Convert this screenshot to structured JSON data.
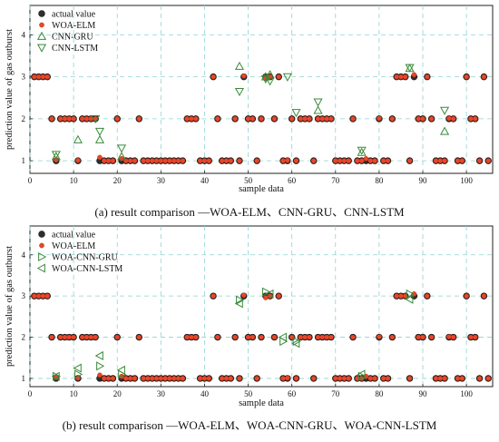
{
  "chart_data": [
    {
      "type": "scatter",
      "caption": "(a) result comparison —WOA-ELM、CNN-GRU、CNN-LSTM",
      "xlabel": "sample data",
      "ylabel": "prediction value of gas outburst",
      "xlim": [
        0,
        106
      ],
      "ylim": [
        0.7,
        4.7
      ],
      "xticks": [
        "0",
        "10",
        "20",
        "30",
        "40",
        "50",
        "60",
        "70",
        "80",
        "90",
        "100"
      ],
      "yticks": [
        "1",
        "2",
        "3",
        "4"
      ],
      "grid": true,
      "legend_position": "top-left",
      "series": [
        {
          "name": "actual value",
          "marker": "circle",
          "color": "#333333",
          "x": [
            1,
            2,
            3,
            4,
            5,
            6,
            7,
            8,
            9,
            10,
            11,
            12,
            13,
            14,
            15,
            16,
            17,
            18,
            19,
            20,
            21,
            22,
            23,
            24,
            25,
            26,
            27,
            28,
            29,
            30,
            31,
            32,
            33,
            34,
            35,
            36,
            37,
            38,
            39,
            40,
            41,
            42,
            43,
            44,
            45,
            46,
            47,
            48,
            49,
            50,
            51,
            52,
            53,
            54,
            55,
            56,
            57,
            58,
            59,
            60,
            61,
            62,
            63,
            64,
            65,
            66,
            67,
            68,
            69,
            70,
            71,
            72,
            73,
            74,
            75,
            76,
            77,
            78,
            79,
            80,
            81,
            82,
            83,
            84,
            85,
            86,
            87,
            88,
            89,
            90,
            91,
            92,
            93,
            94,
            95,
            96,
            97,
            98,
            99,
            100,
            101,
            102,
            103,
            104,
            105
          ],
          "y": [
            3,
            3,
            3,
            3,
            2,
            1,
            2,
            2,
            2,
            2,
            1,
            2,
            2,
            2,
            2,
            1,
            1,
            1,
            1,
            2,
            1,
            1,
            1,
            1,
            2,
            1,
            1,
            1,
            1,
            1,
            1,
            1,
            1,
            1,
            1,
            2,
            2,
            2,
            1,
            1,
            1,
            3,
            2,
            1,
            1,
            1,
            2,
            1,
            3,
            2,
            2,
            1,
            2,
            3,
            3,
            2,
            3,
            1,
            1,
            2,
            1,
            2,
            2,
            2,
            1,
            2,
            2,
            2,
            2,
            1,
            1,
            1,
            1,
            2,
            1,
            1,
            1,
            1,
            1,
            2,
            1,
            1,
            2,
            3,
            3,
            3,
            1,
            3,
            2,
            2,
            3,
            2,
            1,
            1,
            1,
            2,
            2,
            1,
            1,
            3,
            2,
            2,
            1,
            3,
            1
          ]
        },
        {
          "name": "WOA-ELM",
          "marker": "circle-red",
          "color": "#e8462a",
          "x": [
            1,
            2,
            3,
            4,
            5,
            6,
            7,
            8,
            9,
            10,
            11,
            12,
            13,
            14,
            15,
            16,
            17,
            18,
            19,
            20,
            21,
            22,
            23,
            24,
            25,
            26,
            27,
            28,
            29,
            30,
            31,
            32,
            33,
            34,
            35,
            36,
            37,
            38,
            39,
            40,
            41,
            42,
            43,
            44,
            45,
            46,
            47,
            48,
            49,
            50,
            51,
            52,
            53,
            54,
            55,
            56,
            57,
            58,
            59,
            60,
            61,
            62,
            63,
            64,
            65,
            66,
            67,
            68,
            69,
            70,
            71,
            72,
            73,
            74,
            75,
            76,
            77,
            78,
            79,
            80,
            81,
            82,
            83,
            84,
            85,
            86,
            87,
            88,
            89,
            90,
            91,
            92,
            93,
            94,
            95,
            96,
            97,
            98,
            99,
            100,
            101,
            102,
            103,
            104,
            105
          ],
          "y": [
            3,
            3,
            3,
            3,
            2,
            1.02,
            2,
            2,
            2,
            2,
            1.01,
            2,
            2,
            2,
            2,
            1.08,
            1,
            1,
            1,
            2,
            1.05,
            1,
            1,
            1,
            2,
            1,
            1,
            1,
            1,
            1,
            1,
            1,
            1,
            1,
            1,
            2,
            2,
            2,
            1,
            1,
            1,
            3,
            2,
            1,
            1,
            1,
            2,
            1,
            3.02,
            2,
            2,
            1,
            2,
            2.96,
            3,
            2,
            3,
            1,
            1.01,
            2,
            1,
            2,
            2,
            2,
            1,
            2,
            2,
            2,
            2,
            1,
            1,
            1,
            1,
            2,
            1,
            1,
            1.05,
            1,
            1,
            2.01,
            1,
            1,
            2,
            3,
            3,
            3,
            1,
            3.05,
            2,
            2,
            3,
            2,
            1,
            1,
            1,
            2.01,
            2,
            1,
            1,
            3,
            2,
            2,
            1,
            3,
            1
          ]
        },
        {
          "name": "CNN-GRU",
          "marker": "triangle-up",
          "color": "#3a8a3a",
          "x": [
            6,
            11,
            16,
            21,
            48,
            54,
            55,
            66,
            76,
            87,
            95
          ],
          "y": [
            1.1,
            1.5,
            1.5,
            1.1,
            3.25,
            3.0,
            3.05,
            2.2,
            1.2,
            3.2,
            1.7
          ]
        },
        {
          "name": "CNN-LSTM",
          "marker": "triangle-down",
          "color": "#3a8a3a",
          "x": [
            6,
            15,
            16,
            21,
            48,
            54,
            55,
            59,
            61,
            66,
            76,
            87,
            95
          ],
          "y": [
            1.15,
            2.0,
            1.7,
            1.3,
            2.65,
            2.95,
            2.9,
            3.0,
            2.15,
            2.4,
            1.25,
            3.22,
            2.2
          ]
        }
      ]
    },
    {
      "type": "scatter",
      "caption": "(b) result comparison —WOA-ELM、WOA-CNN-GRU、WOA-CNN-LSTM",
      "xlabel": "sample data",
      "ylabel": "prediction value of gas outburst",
      "xlim": [
        0,
        106
      ],
      "ylim": [
        0.8,
        4.7
      ],
      "xticks": [
        "0",
        "10",
        "20",
        "30",
        "40",
        "50",
        "60",
        "70",
        "80",
        "90",
        "100"
      ],
      "yticks": [
        "1",
        "2",
        "3",
        "4"
      ],
      "grid": true,
      "legend_position": "top-left",
      "series": [
        {
          "name": "actual value",
          "marker": "circle",
          "color": "#333333",
          "x": [
            1,
            2,
            3,
            4,
            5,
            6,
            7,
            8,
            9,
            10,
            11,
            12,
            13,
            14,
            15,
            16,
            17,
            18,
            19,
            20,
            21,
            22,
            23,
            24,
            25,
            26,
            27,
            28,
            29,
            30,
            31,
            32,
            33,
            34,
            35,
            36,
            37,
            38,
            39,
            40,
            41,
            42,
            43,
            44,
            45,
            46,
            47,
            48,
            49,
            50,
            51,
            52,
            53,
            54,
            55,
            56,
            57,
            58,
            59,
            60,
            61,
            62,
            63,
            64,
            65,
            66,
            67,
            68,
            69,
            70,
            71,
            72,
            73,
            74,
            75,
            76,
            77,
            78,
            79,
            80,
            81,
            82,
            83,
            84,
            85,
            86,
            87,
            88,
            89,
            90,
            91,
            92,
            93,
            94,
            95,
            96,
            97,
            98,
            99,
            100,
            101,
            102,
            103,
            104,
            105
          ],
          "y": [
            3,
            3,
            3,
            3,
            2,
            1,
            2,
            2,
            2,
            2,
            1,
            2,
            2,
            2,
            2,
            1,
            1,
            1,
            1,
            2,
            1,
            1,
            1,
            1,
            2,
            1,
            1,
            1,
            1,
            1,
            1,
            1,
            1,
            1,
            1,
            2,
            2,
            2,
            1,
            1,
            1,
            3,
            2,
            1,
            1,
            1,
            2,
            1,
            3,
            2,
            2,
            1,
            2,
            3,
            3,
            2,
            3,
            1,
            1,
            2,
            1,
            2,
            2,
            2,
            1,
            2,
            2,
            2,
            2,
            1,
            1,
            1,
            1,
            2,
            1,
            1,
            1,
            1,
            1,
            2,
            1,
            1,
            2,
            3,
            3,
            3,
            1,
            3,
            2,
            2,
            3,
            2,
            1,
            1,
            1,
            2,
            2,
            1,
            1,
            3,
            2,
            2,
            1,
            3,
            1
          ]
        },
        {
          "name": "WOA-ELM",
          "marker": "circle-red",
          "color": "#e8462a",
          "x": [
            1,
            2,
            3,
            4,
            5,
            6,
            7,
            8,
            9,
            10,
            11,
            12,
            13,
            14,
            15,
            16,
            17,
            18,
            19,
            20,
            21,
            22,
            23,
            24,
            25,
            26,
            27,
            28,
            29,
            30,
            31,
            32,
            33,
            34,
            35,
            36,
            37,
            38,
            39,
            40,
            41,
            42,
            43,
            44,
            45,
            46,
            47,
            48,
            49,
            50,
            51,
            52,
            53,
            54,
            55,
            56,
            57,
            58,
            59,
            60,
            61,
            62,
            63,
            64,
            65,
            66,
            67,
            68,
            69,
            70,
            71,
            72,
            73,
            74,
            75,
            76,
            77,
            78,
            79,
            80,
            81,
            82,
            83,
            84,
            85,
            86,
            87,
            88,
            89,
            90,
            91,
            92,
            93,
            94,
            95,
            96,
            97,
            98,
            99,
            100,
            101,
            102,
            103,
            104,
            105
          ],
          "y": [
            3,
            3,
            3,
            3,
            2,
            1.02,
            2,
            2,
            2,
            2,
            1.01,
            2,
            2,
            2,
            2,
            1.08,
            1,
            1,
            1,
            2,
            1.05,
            1,
            1,
            1,
            2,
            1,
            1,
            1,
            1,
            1,
            1,
            1,
            1,
            1,
            1,
            2,
            2,
            2,
            1,
            1,
            1,
            3,
            2,
            1,
            1,
            1,
            2,
            1,
            3.02,
            2,
            2,
            1,
            2,
            2.96,
            3,
            2,
            3,
            1,
            1.01,
            2,
            1,
            2,
            2,
            2,
            1,
            2,
            2,
            2,
            2,
            1,
            1,
            1,
            1,
            2,
            1,
            1,
            1.05,
            1,
            1,
            2.01,
            1,
            1,
            2,
            3,
            3,
            3,
            1,
            3.05,
            2,
            2,
            3,
            2,
            1,
            1,
            1,
            2.01,
            2,
            1,
            1,
            3,
            2,
            2,
            1,
            3,
            1
          ]
        },
        {
          "name": "WOA-CNN-GRU",
          "marker": "triangle-right",
          "color": "#3a8a3a",
          "x": [
            6,
            11,
            16,
            21,
            48,
            54,
            58,
            61,
            76,
            87
          ],
          "y": [
            1.05,
            1.1,
            1.3,
            1.1,
            2.9,
            3.1,
            1.9,
            1.9,
            1.05,
            3.05
          ]
        },
        {
          "name": "WOA-CNN-LSTM",
          "marker": "triangle-left",
          "color": "#3a8a3a",
          "x": [
            6,
            11,
            16,
            21,
            48,
            55,
            58,
            61,
            76,
            87
          ],
          "y": [
            1.05,
            1.25,
            1.55,
            1.2,
            2.82,
            3.05,
            2.0,
            1.85,
            1.1,
            2.92
          ]
        }
      ]
    }
  ]
}
